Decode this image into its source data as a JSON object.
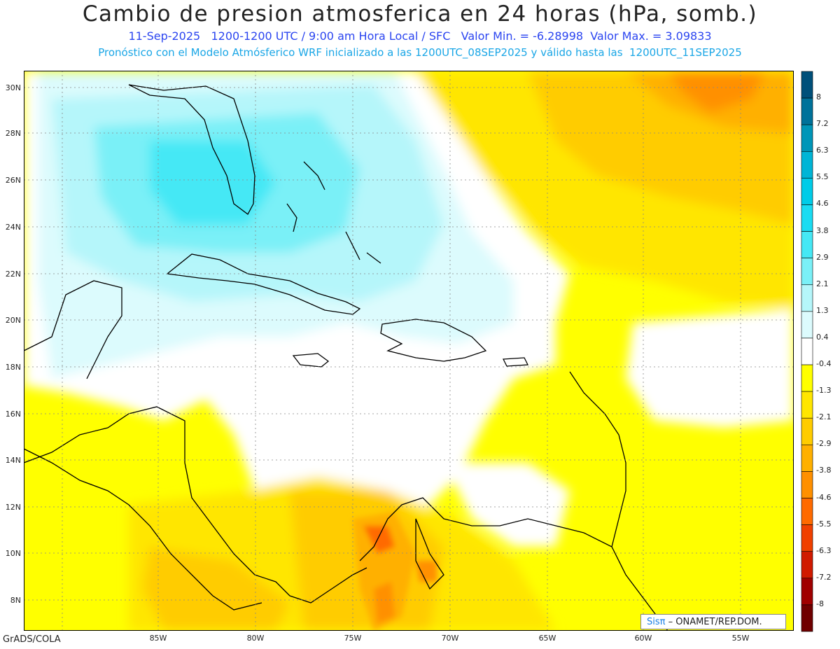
{
  "header": {
    "title": "Cambio de presion atmosferica en 24 horas (hPa, somb.)",
    "subtitle_line1": "11-Sep-2025   1200-1200 UTC / 9:00 am Hora Local / SFC   Valor Min. = -6.28998  Valor Max. = 3.09833",
    "subtitle_line2": "Pronóstico con el Modelo Atmósferico WRF inicializado a las 1200UTC_08SEP2025 y válido hasta las  1200UTC_11SEP2025"
  },
  "map": {
    "lat_labels": [
      "30N",
      "28N",
      "26N",
      "24N",
      "22N",
      "20N",
      "18N",
      "16N",
      "14N",
      "12N",
      "10N",
      "8N"
    ],
    "lon_labels": [
      "85W",
      "80W",
      "75W",
      "70W",
      "65W",
      "60W",
      "55W"
    ]
  },
  "colorbar": {
    "labels": [
      "8",
      "7.2",
      "6.3",
      "5.5",
      "4.6",
      "3.8",
      "2.9",
      "2.1",
      "1.3",
      "0.4",
      "-0.4",
      "-1.3",
      "-2.1",
      "-2.9",
      "-3.8",
      "-4.6",
      "-5.5",
      "-6.3",
      "-7.2",
      "-8"
    ],
    "colors": [
      "#00507a",
      "#00729a",
      "#0096b8",
      "#00b5d6",
      "#00cce8",
      "#1adcf2",
      "#45e8f5",
      "#7af0f7",
      "#b5f6fa",
      "#dcfbfd",
      "#ffffff",
      "#ffff00",
      "#ffe600",
      "#ffcc00",
      "#ffb000",
      "#ff9000",
      "#ff6a00",
      "#f04000",
      "#d01a00",
      "#a00000",
      "#700000"
    ]
  },
  "footer": {
    "left": "GrADS/COLA",
    "credit_prefix": "Sis",
    "credit_pi": "π",
    "credit_suffix": " – ONAMET/REP.DOM."
  }
}
